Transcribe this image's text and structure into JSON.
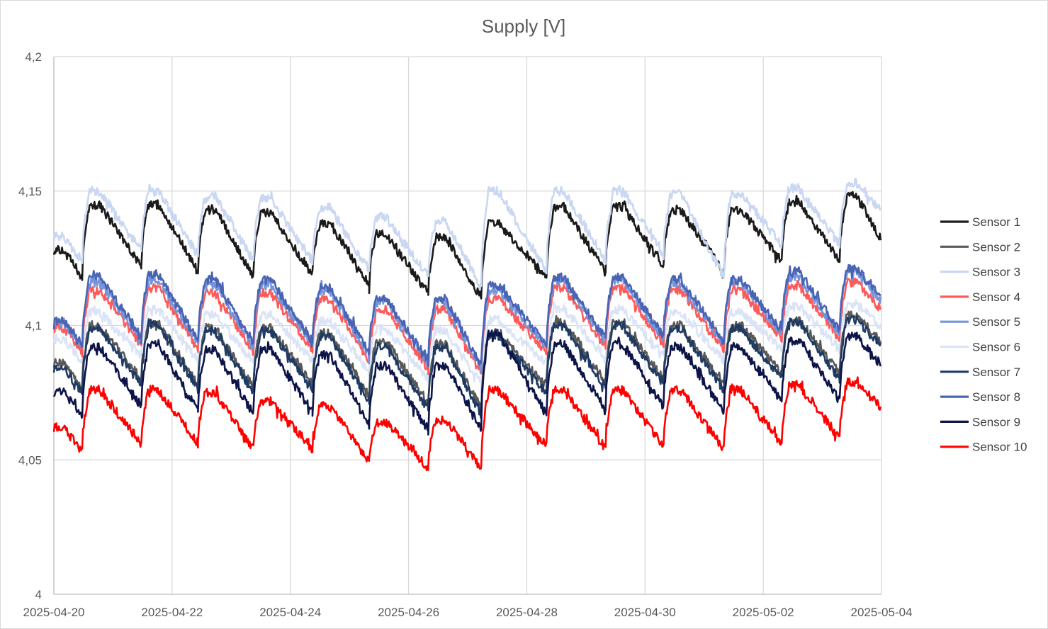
{
  "chart_data": {
    "type": "line",
    "title": "Supply [V]",
    "xlabel": "",
    "ylabel": "",
    "ylim": [
      4.0,
      4.2
    ],
    "yticks": [
      4.0,
      4.05,
      4.1,
      4.15,
      4.2
    ],
    "ytick_labels": [
      "4",
      "4,05",
      "4,1",
      "4,15",
      "4,2"
    ],
    "xlim": [
      "2025-04-20",
      "2025-05-04"
    ],
    "xticks": [
      "2025-04-20",
      "2025-04-22",
      "2025-04-24",
      "2025-04-26",
      "2025-04-28",
      "2025-04-30",
      "2025-05-02",
      "2025-05-04"
    ],
    "data_end": "2025-05-03 23:59",
    "grid": true,
    "legend_position": "right",
    "cycle_start_times": [
      "2025-04-20 00:00",
      "2025-04-20 11:30",
      "2025-04-21 11:30",
      "2025-04-22 10:30",
      "2025-04-23 09:00",
      "2025-04-24 09:00",
      "2025-04-25 08:00",
      "2025-04-26 08:00",
      "2025-04-27 05:30",
      "2025-04-28 08:00",
      "2025-04-29 08:00",
      "2025-04-30 07:30",
      "2025-05-01 08:00",
      "2025-05-02 07:30",
      "2025-05-03 07:00"
    ],
    "series": [
      {
        "name": "Sensor 1",
        "color": "#1a1a1a",
        "peaks": [
          4.128,
          4.145,
          4.145,
          4.143,
          4.142,
          4.138,
          4.134,
          4.133,
          4.138,
          4.144,
          4.144,
          4.143,
          4.143,
          4.146,
          4.148
        ],
        "troughs": [
          4.128,
          4.118,
          4.122,
          4.12,
          4.118,
          4.119,
          4.115,
          4.112,
          4.11,
          4.118,
          4.12,
          4.122,
          4.12,
          4.124,
          4.124,
          4.132
        ]
      },
      {
        "name": "Sensor 2",
        "color": "#595959",
        "peaks": [
          4.086,
          4.1,
          4.101,
          4.099,
          4.099,
          4.097,
          4.094,
          4.093,
          4.097,
          4.101,
          4.101,
          4.1,
          4.1,
          4.102,
          4.104
        ],
        "troughs": [
          4.086,
          4.077,
          4.08,
          4.078,
          4.077,
          4.078,
          4.074,
          4.071,
          4.069,
          4.077,
          4.079,
          4.08,
          4.078,
          4.082,
          4.082,
          4.093
        ]
      },
      {
        "name": "Sensor 3",
        "color": "#c9d7f2",
        "peaks": [
          4.133,
          4.15,
          4.15,
          4.148,
          4.147,
          4.144,
          4.14,
          4.139,
          4.15,
          4.15,
          4.15,
          4.149,
          4.149,
          4.151,
          4.153
        ],
        "troughs": [
          4.133,
          4.124,
          4.128,
          4.126,
          4.124,
          4.124,
          4.12,
          4.118,
          4.114,
          4.12,
          4.124,
          4.126,
          4.118,
          4.13,
          4.13,
          4.143
        ]
      },
      {
        "name": "Sensor 4",
        "color": "#ff5a5a",
        "peaks": [
          4.099,
          4.113,
          4.114,
          4.112,
          4.112,
          4.11,
          4.106,
          4.106,
          4.11,
          4.114,
          4.114,
          4.113,
          4.113,
          4.115,
          4.116
        ],
        "troughs": [
          4.099,
          4.09,
          4.093,
          4.091,
          4.09,
          4.091,
          4.087,
          4.084,
          4.082,
          4.09,
          4.092,
          4.093,
          4.091,
          4.095,
          4.095,
          4.106
        ]
      },
      {
        "name": "Sensor 5",
        "color": "#7494dc",
        "peaks": [
          4.101,
          4.116,
          4.117,
          4.115,
          4.115,
          4.113,
          4.109,
          4.109,
          4.113,
          4.117,
          4.117,
          4.116,
          4.116,
          4.118,
          4.12
        ],
        "troughs": [
          4.101,
          4.092,
          4.095,
          4.093,
          4.092,
          4.093,
          4.089,
          4.086,
          4.084,
          4.092,
          4.094,
          4.095,
          4.093,
          4.097,
          4.097,
          4.109
        ]
      },
      {
        "name": "Sensor 6",
        "color": "#dbe4f7",
        "peaks": [
          4.095,
          4.105,
          4.106,
          4.104,
          4.104,
          4.102,
          4.099,
          4.098,
          4.102,
          4.106,
          4.106,
          4.105,
          4.105,
          4.107,
          4.108
        ],
        "troughs": [
          4.095,
          4.086,
          4.089,
          4.087,
          4.086,
          4.087,
          4.083,
          4.08,
          4.078,
          4.086,
          4.088,
          4.089,
          4.087,
          4.091,
          4.091,
          4.099
        ]
      },
      {
        "name": "Sensor 7",
        "color": "#1f3b63",
        "peaks": [
          4.084,
          4.099,
          4.1,
          4.098,
          4.098,
          4.096,
          4.092,
          4.092,
          4.096,
          4.1,
          4.1,
          4.099,
          4.099,
          4.101,
          4.102
        ],
        "troughs": [
          4.084,
          4.075,
          4.078,
          4.076,
          4.075,
          4.076,
          4.072,
          4.069,
          4.067,
          4.075,
          4.077,
          4.078,
          4.076,
          4.08,
          4.08,
          4.092
        ]
      },
      {
        "name": "Sensor 8",
        "color": "#4a64b4",
        "peaks": [
          4.102,
          4.118,
          4.119,
          4.117,
          4.117,
          4.114,
          4.11,
          4.11,
          4.115,
          4.118,
          4.118,
          4.117,
          4.117,
          4.12,
          4.121
        ],
        "troughs": [
          4.102,
          4.093,
          4.096,
          4.094,
          4.093,
          4.094,
          4.09,
          4.087,
          4.085,
          4.093,
          4.095,
          4.096,
          4.094,
          4.098,
          4.098,
          4.11
        ]
      },
      {
        "name": "Sensor 9",
        "color": "#0d1448",
        "peaks": [
          4.075,
          4.092,
          4.093,
          4.091,
          4.091,
          4.089,
          4.085,
          4.085,
          4.097,
          4.093,
          4.093,
          4.092,
          4.092,
          4.094,
          4.096
        ],
        "troughs": [
          4.075,
          4.067,
          4.07,
          4.068,
          4.067,
          4.068,
          4.063,
          4.061,
          4.062,
          4.067,
          4.069,
          4.07,
          4.068,
          4.072,
          4.072,
          4.085
        ]
      },
      {
        "name": "Sensor 10",
        "color": "#ff0000",
        "peaks": [
          4.062,
          4.076,
          4.076,
          4.075,
          4.072,
          4.07,
          4.064,
          4.065,
          4.076,
          4.076,
          4.076,
          4.076,
          4.076,
          4.078,
          4.079
        ],
        "troughs": [
          4.062,
          4.053,
          4.056,
          4.056,
          4.054,
          4.054,
          4.049,
          4.047,
          4.047,
          4.055,
          4.054,
          4.055,
          4.054,
          4.056,
          4.058,
          4.069
        ]
      }
    ]
  }
}
